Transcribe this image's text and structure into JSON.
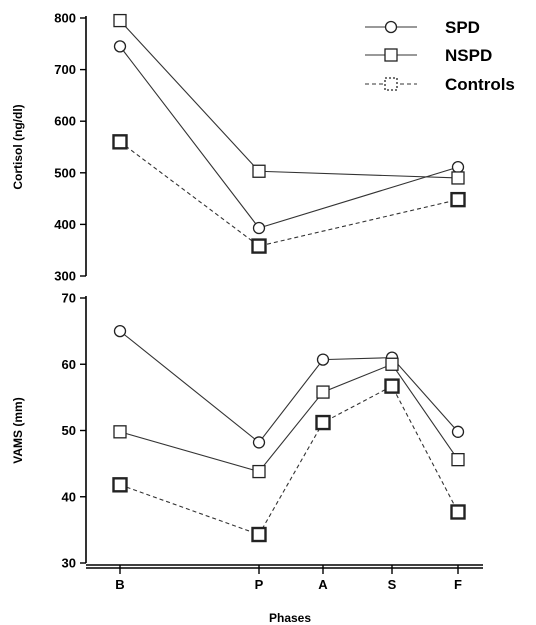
{
  "chart_data": [
    {
      "type": "line",
      "ylabel": "Cortisol (ng/dl)",
      "ylim": [
        300,
        800
      ],
      "yticks": [
        300,
        400,
        500,
        600,
        700,
        800
      ],
      "categories": [
        "B",
        "P",
        "A",
        "S",
        "F"
      ],
      "series": [
        {
          "name": "SPD",
          "marker": "circle",
          "style": "solid",
          "x": [
            "B",
            "P",
            "F"
          ],
          "values": [
            745,
            393,
            511
          ]
        },
        {
          "name": "NSPD",
          "marker": "square",
          "style": "solid",
          "x": [
            "B",
            "P",
            "F"
          ],
          "values": [
            795,
            503,
            490
          ]
        },
        {
          "name": "Controls",
          "marker": "square-bold",
          "style": "dashed",
          "x": [
            "B",
            "P",
            "F"
          ],
          "values": [
            560,
            358,
            448
          ]
        }
      ],
      "legend": "top-right",
      "grid": false
    },
    {
      "type": "line",
      "ylabel": "VAMS (mm)",
      "xlabel": "Phases",
      "ylim": [
        30,
        70
      ],
      "yticks": [
        30,
        40,
        50,
        60,
        70
      ],
      "categories": [
        "B",
        "P",
        "A",
        "S",
        "F"
      ],
      "series": [
        {
          "name": "SPD",
          "marker": "circle",
          "style": "solid",
          "x": [
            "B",
            "P",
            "A",
            "S",
            "F"
          ],
          "values": [
            65,
            48.2,
            60.7,
            61,
            49.8
          ]
        },
        {
          "name": "NSPD",
          "marker": "square",
          "style": "solid",
          "x": [
            "B",
            "P",
            "A",
            "S",
            "F"
          ],
          "values": [
            49.8,
            43.8,
            55.8,
            60,
            45.6
          ]
        },
        {
          "name": "Controls",
          "marker": "square-bold",
          "style": "dashed",
          "x": [
            "B",
            "P",
            "A",
            "S",
            "F"
          ],
          "values": [
            41.8,
            34.3,
            51.2,
            56.7,
            37.7
          ]
        }
      ],
      "grid": false
    }
  ]
}
